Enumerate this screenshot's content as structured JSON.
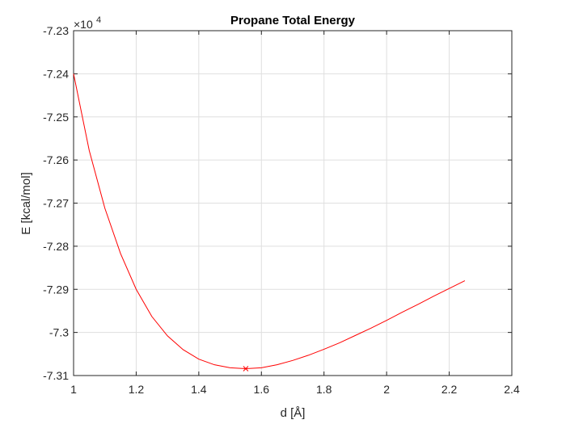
{
  "chart_data": {
    "type": "line",
    "title": "Propane Total Energy",
    "xlabel": "d [Å]",
    "ylabel": "E [kcal/mol]",
    "y_exponent_label": "×10",
    "y_exponent_power": "4",
    "xlim": [
      1.0,
      2.4
    ],
    "ylim": [
      -7.31,
      -7.23
    ],
    "x_ticks": [
      1.0,
      1.2,
      1.4,
      1.6,
      1.8,
      2.0,
      2.2,
      2.4
    ],
    "x_tick_labels": [
      "1",
      "1.2",
      "1.4",
      "1.6",
      "1.8",
      "2",
      "2.2",
      "2.4"
    ],
    "y_ticks": [
      -7.31,
      -7.3,
      -7.29,
      -7.28,
      -7.27,
      -7.26,
      -7.25,
      -7.24,
      -7.23
    ],
    "y_tick_labels": [
      "-7.31",
      "-7.3",
      "-7.29",
      "-7.28",
      "-7.27",
      "-7.26",
      "-7.25",
      "-7.24",
      "-7.23"
    ],
    "grid": true,
    "series": [
      {
        "color": "#ff0000",
        "x": [
          1.0,
          1.05,
          1.1,
          1.15,
          1.2,
          1.25,
          1.3,
          1.35,
          1.4,
          1.45,
          1.5,
          1.55,
          1.6,
          1.65,
          1.7,
          1.75,
          1.8,
          1.85,
          1.9,
          1.95,
          2.0,
          2.05,
          2.1,
          2.15,
          2.2,
          2.25
        ],
        "y": [
          -7.24,
          -7.2578,
          -7.2712,
          -7.2817,
          -7.29,
          -7.2963,
          -7.3008,
          -7.304,
          -7.3062,
          -7.3075,
          -7.3082,
          -7.3084,
          -7.3082,
          -7.3075,
          -7.3065,
          -7.3053,
          -7.3039,
          -7.3024,
          -7.3007,
          -7.299,
          -7.2972,
          -7.2953,
          -7.2935,
          -7.2916,
          -7.2898,
          -7.288
        ]
      }
    ],
    "marker": {
      "x": 1.55,
      "y": -7.3084,
      "symbol": "x",
      "color": "#ff0000"
    }
  }
}
